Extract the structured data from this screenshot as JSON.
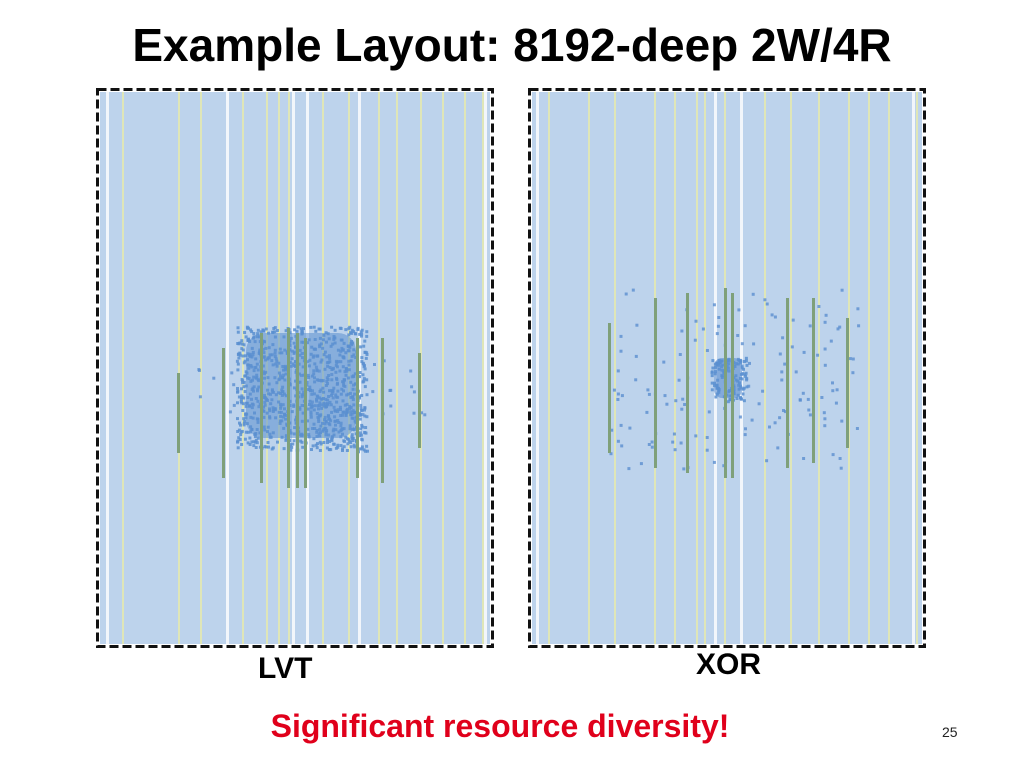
{
  "slide": {
    "title": "Example Layout: 8192-deep 2W/4R",
    "conclusion": "Significant resource diversity!",
    "page_number": "25"
  },
  "panels": [
    {
      "id": "lvt",
      "label": "LVT"
    },
    {
      "id": "xor",
      "label": "XOR"
    }
  ],
  "colors": {
    "fabric": "#bdd3ec",
    "column_stripe": "#dfe6b8",
    "column_white": "#f2f6fb",
    "logic_fill": "#5b8fd0",
    "dsp_bram": "#7fa07a",
    "border_dark": "#111111",
    "conclusion_text": "#e0001b"
  }
}
